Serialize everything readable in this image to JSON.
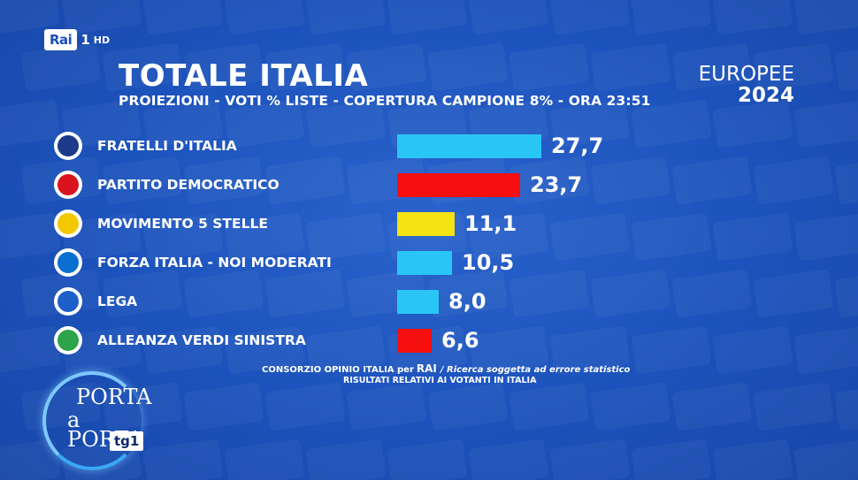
{
  "channel": {
    "name": "Rai",
    "number": "1",
    "hd": "HD"
  },
  "header": {
    "title": "TOTALE ITALIA",
    "subtitle": "PROIEZIONI - VOTI % LISTE - COPERTURA CAMPIONE 8% - ORA 23:51"
  },
  "brand": {
    "line1": "EUROPEE",
    "line2": "2024"
  },
  "chart_data": {
    "type": "bar",
    "orientation": "horizontal",
    "title": "TOTALE ITALIA",
    "categories": [
      "FRATELLI D'ITALIA",
      "PARTITO DEMOCRATICO",
      "MOVIMENTO 5 STELLE",
      "FORZA ITALIA - NOI MODERATI",
      "LEGA",
      "ALLEANZA VERDI SINISTRA"
    ],
    "values": [
      27.7,
      23.7,
      11.1,
      10.5,
      8.0,
      6.6
    ],
    "value_labels": [
      "27,7",
      "23,7",
      "11,1",
      "10,5",
      "8,0",
      "6,6"
    ],
    "colors": [
      "#29c6f5",
      "#f50f0f",
      "#f5e313",
      "#29c6f5",
      "#29c6f5",
      "#f50f0f"
    ],
    "logo_colors": [
      "#1d3a8a",
      "#d9141e",
      "#f4c800",
      "#0a6fd1",
      "#1d5fc9",
      "#2da44a"
    ]
  },
  "footer": {
    "source": "CONSORZIO OPINIO ITALIA per",
    "source_brand": "RAI",
    "note": "/ Ricerca soggetta ad errore statistico",
    "line2": "RISULTATI RELATIVI AI VOTANTI IN ITALIA"
  },
  "show": {
    "line1": "PORTA",
    "line2": "a PORTA",
    "badge": "tg1"
  }
}
